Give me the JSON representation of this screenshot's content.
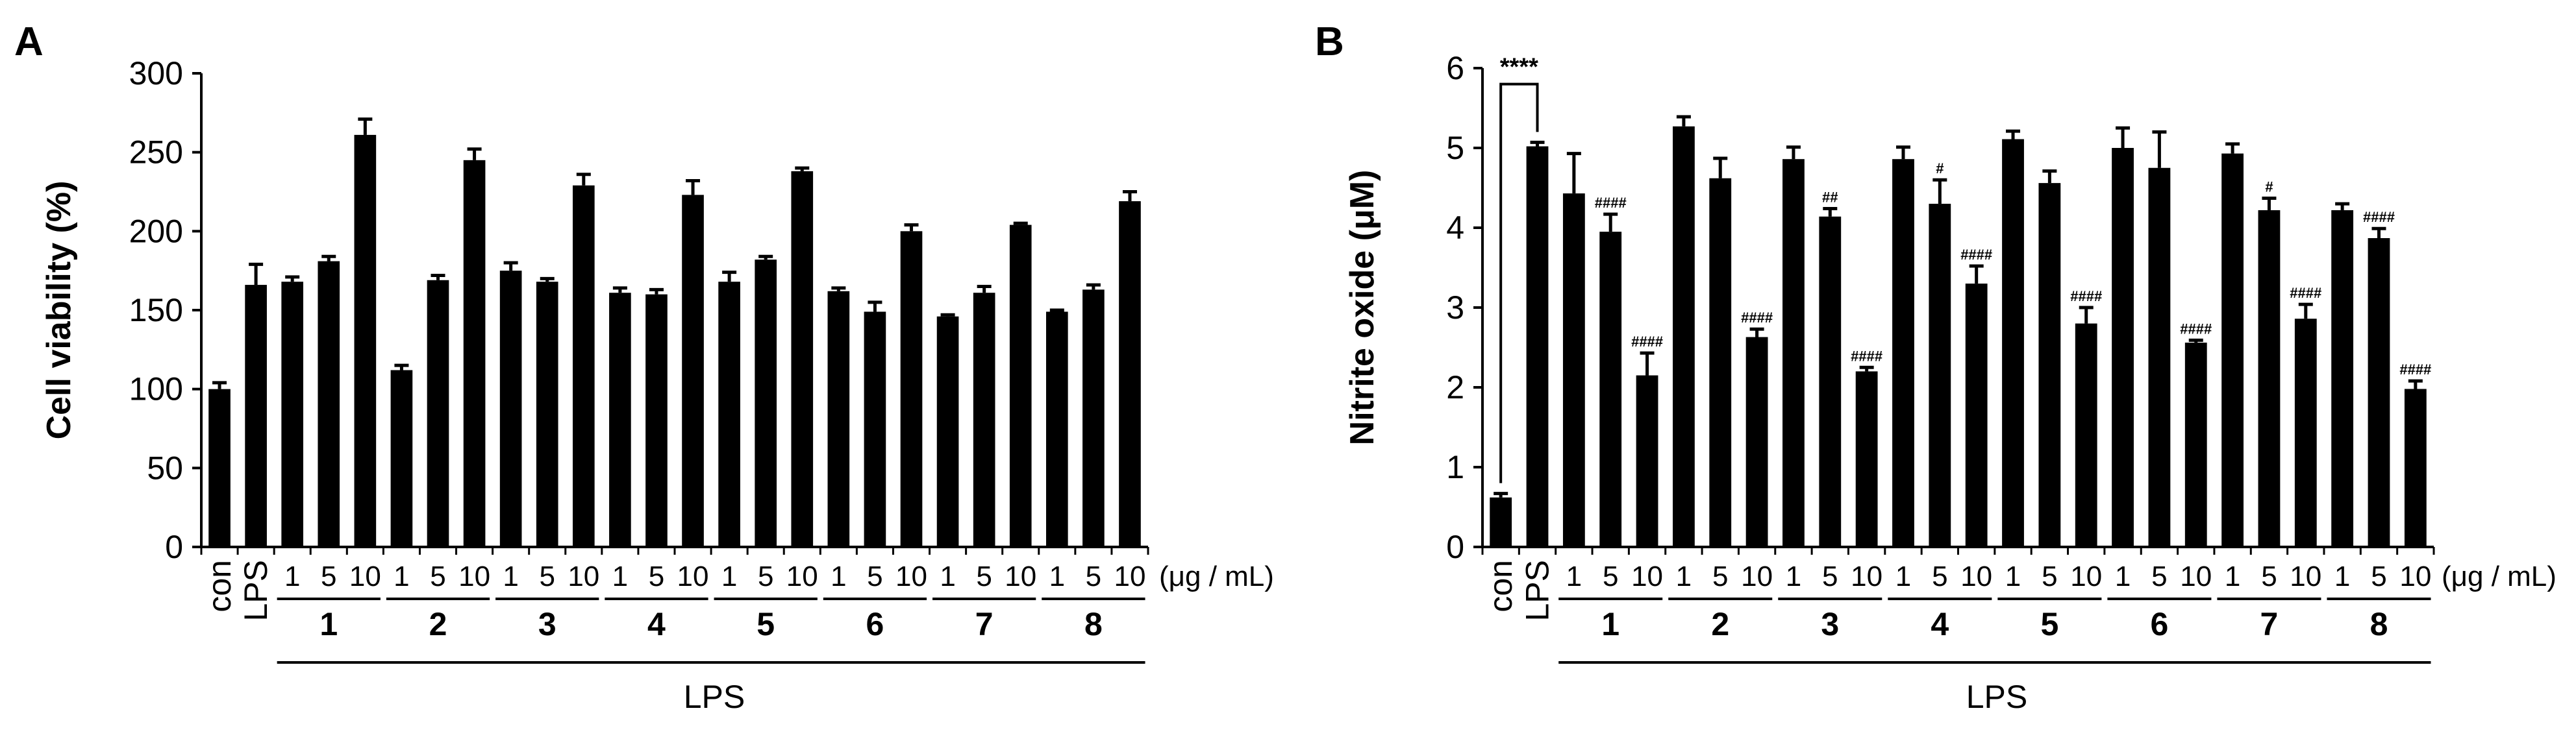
{
  "chart_data": [
    {
      "type": "bar",
      "panel_label": "A",
      "ylabel": "Cell viability (%)",
      "ylim": [
        0,
        300
      ],
      "yticks": [
        0,
        50,
        100,
        150,
        200,
        250,
        300
      ],
      "categories": [
        "con",
        "LPS",
        "1",
        "5",
        "10",
        "1",
        "5",
        "10",
        "1",
        "5",
        "10",
        "1",
        "5",
        "10",
        "1",
        "5",
        "10",
        "1",
        "5",
        "10",
        "1",
        "5",
        "10",
        "1",
        "5",
        "10"
      ],
      "values": [
        100,
        166,
        168,
        181,
        261,
        112,
        169,
        245,
        175,
        168,
        229,
        161,
        160,
        223,
        168,
        182,
        238,
        162,
        149,
        200,
        146,
        161,
        204,
        149,
        163,
        219
      ],
      "errors": [
        4,
        13,
        3,
        3,
        10,
        3,
        3,
        7,
        5,
        2,
        7,
        3,
        3,
        9,
        6,
        2,
        2,
        2,
        6,
        4,
        1,
        4,
        1,
        1,
        3,
        6
      ],
      "annotations": [
        "",
        "",
        "",
        "",
        "",
        "",
        "",
        "",
        "",
        "",
        "",
        "",
        "",
        "",
        "",
        "",
        "",
        "",
        "",
        "",
        "",
        "",
        "",
        "",
        "",
        ""
      ],
      "compound_labels": [
        "1",
        "2",
        "3",
        "4",
        "5",
        "6",
        "7",
        "8"
      ],
      "unit_label": "(μg / mL)",
      "group_label": "LPS",
      "significance": null
    },
    {
      "type": "bar",
      "panel_label": "B",
      "ylabel": "Nitrite oxide (μM)",
      "ylim": [
        0,
        6
      ],
      "yticks": [
        0,
        1,
        2,
        3,
        4,
        5,
        6
      ],
      "categories": [
        "con",
        "LPS",
        "1",
        "5",
        "10",
        "1",
        "5",
        "10",
        "1",
        "5",
        "10",
        "1",
        "5",
        "10",
        "1",
        "5",
        "10",
        "1",
        "5",
        "10",
        "1",
        "5",
        "10",
        "1",
        "5",
        "10"
      ],
      "values": [
        0.62,
        5.02,
        4.43,
        3.95,
        2.15,
        5.27,
        4.62,
        2.63,
        4.86,
        4.14,
        2.2,
        4.86,
        4.3,
        3.3,
        5.11,
        4.56,
        2.8,
        5.0,
        4.75,
        2.56,
        4.93,
        4.22,
        2.86,
        4.22,
        3.87,
        1.98
      ],
      "errors": [
        0.05,
        0.05,
        0.5,
        0.22,
        0.28,
        0.12,
        0.25,
        0.1,
        0.15,
        0.1,
        0.05,
        0.15,
        0.3,
        0.22,
        0.1,
        0.15,
        0.2,
        0.25,
        0.45,
        0.03,
        0.12,
        0.15,
        0.18,
        0.08,
        0.12,
        0.1
      ],
      "annotations": [
        "",
        "",
        "",
        "####",
        "####",
        "",
        "",
        "####",
        "",
        "##",
        "####",
        "",
        "#",
        "####",
        "",
        "",
        "####",
        "",
        "",
        "####",
        "",
        "#",
        "####",
        "",
        "####",
        "####"
      ],
      "compound_labels": [
        "1",
        "2",
        "3",
        "4",
        "5",
        "6",
        "7",
        "8"
      ],
      "unit_label": "(μg / mL)",
      "group_label": "LPS",
      "significance": {
        "from": 0,
        "to": 1,
        "label": "****",
        "y": 5.8
      }
    }
  ]
}
